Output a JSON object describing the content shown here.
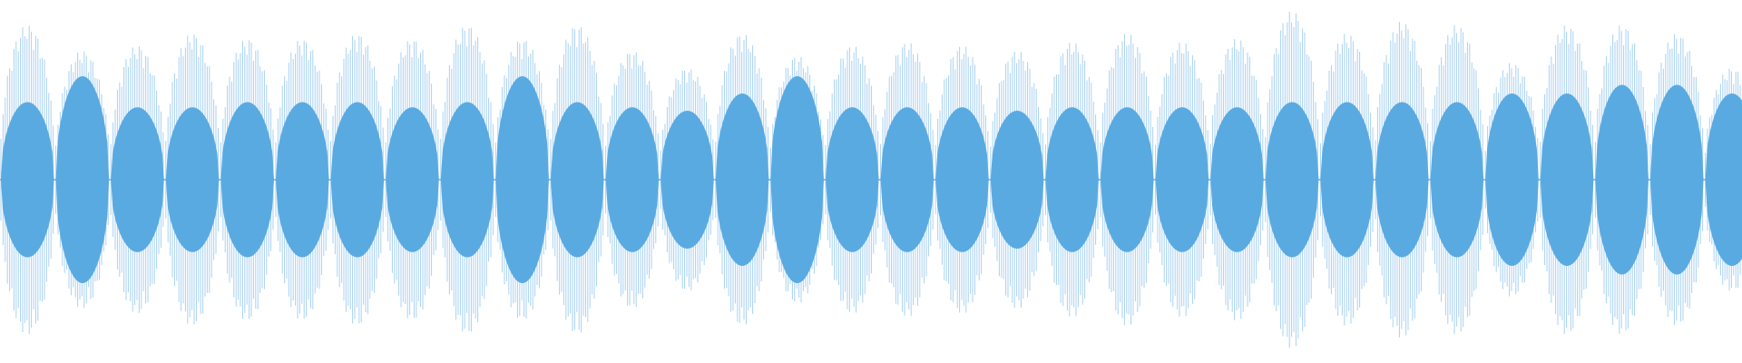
{
  "waveform": {
    "outer_color": "#a9d2f2",
    "inner_color": "#5aaae2",
    "segments": [
      {
        "outer": 0.9,
        "inner": 0.45
      },
      {
        "outer": 0.75,
        "inner": 0.6
      },
      {
        "outer": 0.78,
        "inner": 0.42
      },
      {
        "outer": 0.85,
        "inner": 0.42
      },
      {
        "outer": 0.82,
        "inner": 0.45
      },
      {
        "outer": 0.82,
        "inner": 0.45
      },
      {
        "outer": 0.85,
        "inner": 0.45
      },
      {
        "outer": 0.82,
        "inner": 0.42
      },
      {
        "outer": 0.9,
        "inner": 0.45
      },
      {
        "outer": 0.82,
        "inner": 0.6
      },
      {
        "outer": 0.9,
        "inner": 0.45
      },
      {
        "outer": 0.75,
        "inner": 0.42
      },
      {
        "outer": 0.65,
        "inner": 0.4
      },
      {
        "outer": 0.85,
        "inner": 0.5
      },
      {
        "outer": 0.72,
        "inner": 0.6
      },
      {
        "outer": 0.78,
        "inner": 0.42
      },
      {
        "outer": 0.8,
        "inner": 0.42
      },
      {
        "outer": 0.78,
        "inner": 0.42
      },
      {
        "outer": 0.75,
        "inner": 0.4
      },
      {
        "outer": 0.8,
        "inner": 0.42
      },
      {
        "outer": 0.85,
        "inner": 0.42
      },
      {
        "outer": 0.8,
        "inner": 0.42
      },
      {
        "outer": 0.82,
        "inner": 0.42
      },
      {
        "outer": 0.98,
        "inner": 0.45
      },
      {
        "outer": 0.85,
        "inner": 0.45
      },
      {
        "outer": 0.92,
        "inner": 0.45
      },
      {
        "outer": 0.9,
        "inner": 0.45
      },
      {
        "outer": 0.68,
        "inner": 0.5
      },
      {
        "outer": 0.9,
        "inner": 0.5
      },
      {
        "outer": 0.9,
        "inner": 0.55
      },
      {
        "outer": 0.85,
        "inner": 0.55
      },
      {
        "outer": 0.65,
        "inner": 0.5
      }
    ]
  }
}
